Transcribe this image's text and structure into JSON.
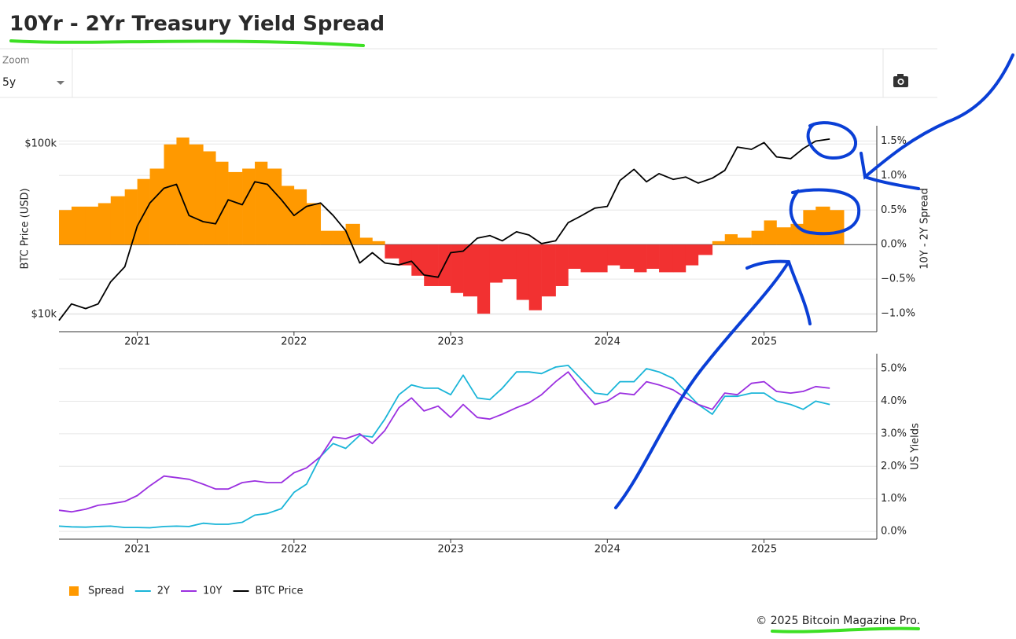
{
  "header": {
    "title": "10Yr - 2Yr Treasury Yield Spread",
    "zoom_label": "Zoom",
    "zoom_value": "5y"
  },
  "chart_data": [
    {
      "type": "combo",
      "ylabel": "BTC Price (USD)",
      "y2label": "10Y - 2Y Spread",
      "ylog": true,
      "yaxis_position": "left",
      "x": [
        2020.5,
        2020.58,
        2020.67,
        2020.75,
        2020.83,
        2020.92,
        2021,
        2021.08,
        2021.17,
        2021.25,
        2021.33,
        2021.42,
        2021.5,
        2021.58,
        2021.67,
        2021.75,
        2021.83,
        2021.92,
        2022,
        2022.08,
        2022.17,
        2022.25,
        2022.33,
        2022.42,
        2022.5,
        2022.58,
        2022.67,
        2022.75,
        2022.83,
        2022.92,
        2023,
        2023.08,
        2023.17,
        2023.25,
        2023.33,
        2023.42,
        2023.5,
        2023.58,
        2023.67,
        2023.75,
        2023.83,
        2023.92,
        2024,
        2024.08,
        2024.17,
        2024.25,
        2024.33,
        2024.42,
        2024.5,
        2024.58,
        2024.67,
        2024.75,
        2024.83,
        2024.92,
        2025,
        2025.08,
        2025.17,
        2025.25,
        2025.33,
        2025.42
      ],
      "xlim": [
        2020.5,
        2025.72
      ],
      "xticks": [
        2021,
        2022,
        2023,
        2024,
        2025
      ],
      "ylim": [
        7900,
        128000
      ],
      "yticks": [
        {
          "value": 10000,
          "label": "$10k"
        },
        {
          "value": 100000,
          "label": "$100k"
        }
      ],
      "y2lim": [
        -1.26,
        1.72
      ],
      "y2ticks": [
        {
          "value": -1,
          "label": "−1.0%"
        },
        {
          "value": -0.5,
          "label": "−0.5%"
        },
        {
          "value": 0,
          "label": "0.0%"
        },
        {
          "value": 0.5,
          "label": "0.5%"
        },
        {
          "value": 1,
          "label": "1.0%"
        },
        {
          "value": 1.5,
          "label": "1.5%"
        }
      ],
      "grid": true,
      "series": [
        {
          "name": "Spread",
          "type": "bar",
          "axis": "y2",
          "color": "#ff9900",
          "negative_color": "#f23131",
          "values": [
            0.5,
            0.55,
            0.55,
            0.6,
            0.7,
            0.8,
            0.95,
            1.1,
            1.45,
            1.55,
            1.45,
            1.35,
            1.2,
            1.05,
            1.1,
            1.2,
            1.1,
            0.85,
            0.8,
            0.6,
            0.2,
            0.2,
            0.3,
            0.1,
            0.05,
            -0.2,
            -0.3,
            -0.45,
            -0.6,
            -0.6,
            -0.7,
            -0.75,
            -1.0,
            -0.55,
            -0.5,
            -0.8,
            -0.95,
            -0.75,
            -0.6,
            -0.35,
            -0.4,
            -0.4,
            -0.3,
            -0.35,
            -0.4,
            -0.35,
            -0.4,
            -0.4,
            -0.3,
            -0.15,
            0.05,
            0.15,
            0.1,
            0.2,
            0.35,
            0.25,
            0.3,
            0.5,
            0.55,
            0.5
          ]
        },
        {
          "name": "BTC Price",
          "type": "line",
          "color": "#000000",
          "values": [
            9200,
            11500,
            10800,
            11500,
            15500,
            19000,
            33000,
            45000,
            55000,
            58000,
            38000,
            35000,
            34000,
            47000,
            44000,
            60000,
            58000,
            47000,
            38000,
            43000,
            45000,
            38000,
            31000,
            20000,
            23000,
            20000,
            19500,
            20500,
            17000,
            16500,
            23000,
            23500,
            28000,
            29000,
            27000,
            30500,
            29200,
            26000,
            27000,
            34500,
            37700,
            42000,
            43000,
            61000,
            71000,
            60000,
            67000,
            62000,
            64000,
            59000,
            63000,
            70000,
            96000,
            93000,
            102000,
            84000,
            82000,
            94000,
            104000,
            107000
          ]
        }
      ]
    },
    {
      "type": "line",
      "ylabel": "US Yields",
      "yaxis_position": "right",
      "x": [
        2020.5,
        2020.58,
        2020.67,
        2020.75,
        2020.83,
        2020.92,
        2021,
        2021.08,
        2021.17,
        2021.25,
        2021.33,
        2021.42,
        2021.5,
        2021.58,
        2021.67,
        2021.75,
        2021.83,
        2021.92,
        2022,
        2022.08,
        2022.17,
        2022.25,
        2022.33,
        2022.42,
        2022.5,
        2022.58,
        2022.67,
        2022.75,
        2022.83,
        2022.92,
        2023,
        2023.08,
        2023.17,
        2023.25,
        2023.33,
        2023.42,
        2023.5,
        2023.58,
        2023.67,
        2023.75,
        2023.83,
        2023.92,
        2024,
        2024.08,
        2024.17,
        2024.25,
        2024.33,
        2024.42,
        2024.5,
        2024.58,
        2024.67,
        2024.75,
        2024.83,
        2024.92,
        2025,
        2025.08,
        2025.17,
        2025.25,
        2025.33,
        2025.42
      ],
      "xlim": [
        2020.5,
        2025.72
      ],
      "xticks": [
        2021,
        2022,
        2023,
        2024,
        2025
      ],
      "ylim": [
        -0.24,
        5.46
      ],
      "yticks": [
        {
          "value": 0,
          "label": "0.0%"
        },
        {
          "value": 1,
          "label": "1.0%"
        },
        {
          "value": 2,
          "label": "2.0%"
        },
        {
          "value": 3,
          "label": "3.0%"
        },
        {
          "value": 4,
          "label": "4.0%"
        },
        {
          "value": 5,
          "label": "5.0%"
        }
      ],
      "grid": true,
      "series": [
        {
          "name": "2Y",
          "color": "#1ab5d8",
          "values": [
            0.16,
            0.14,
            0.13,
            0.15,
            0.16,
            0.12,
            0.12,
            0.11,
            0.15,
            0.16,
            0.15,
            0.25,
            0.22,
            0.22,
            0.28,
            0.5,
            0.55,
            0.7,
            1.2,
            1.45,
            2.3,
            2.7,
            2.55,
            2.95,
            2.9,
            3.45,
            4.2,
            4.5,
            4.4,
            4.4,
            4.2,
            4.8,
            4.1,
            4.05,
            4.4,
            4.9,
            4.9,
            4.85,
            5.05,
            5.1,
            4.7,
            4.25,
            4.2,
            4.6,
            4.6,
            5.0,
            4.9,
            4.7,
            4.3,
            3.9,
            3.6,
            4.15,
            4.15,
            4.25,
            4.25,
            4.0,
            3.9,
            3.75,
            4.0,
            3.9
          ]
        },
        {
          "name": "10Y",
          "color": "#9b30e0",
          "values": [
            0.65,
            0.6,
            0.68,
            0.8,
            0.85,
            0.92,
            1.1,
            1.4,
            1.7,
            1.65,
            1.6,
            1.45,
            1.3,
            1.3,
            1.5,
            1.55,
            1.5,
            1.5,
            1.8,
            1.95,
            2.3,
            2.9,
            2.85,
            3.0,
            2.7,
            3.1,
            3.8,
            4.1,
            3.7,
            3.85,
            3.5,
            3.9,
            3.5,
            3.45,
            3.6,
            3.8,
            3.95,
            4.2,
            4.6,
            4.9,
            4.4,
            3.9,
            4.0,
            4.25,
            4.2,
            4.6,
            4.5,
            4.35,
            4.1,
            3.9,
            3.75,
            4.25,
            4.2,
            4.55,
            4.6,
            4.3,
            4.25,
            4.3,
            4.45,
            4.4
          ]
        }
      ]
    }
  ],
  "footer": "© 2025 Bitcoin Magazine Pro."
}
